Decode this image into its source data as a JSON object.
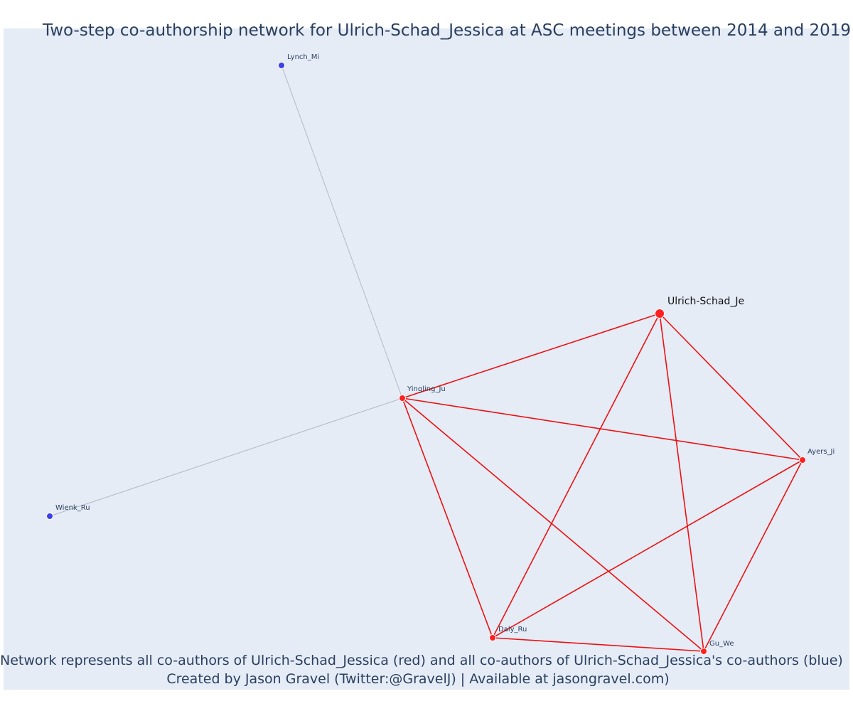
{
  "title": "Two-step co-authorship network for Ulrich-Schad_Jessica at ASC meetings between 2014 and 2019",
  "caption": {
    "line1": "Network represents all co-authors of Ulrich-Schad_Jessica (red) and all co-authors of Ulrich-Schad_Jessica's co-authors (blue)",
    "line2": "Created by Jason Gravel (Twitter:@GravelJ) | Available at jasongravel.com)"
  },
  "colors": {
    "plot_background": "#e5ecf6",
    "coauthor": "#ff2020",
    "second_step": "#3b3fe6",
    "red_edge": "#ee1111",
    "grey_edge": "#b4b8c8"
  },
  "nodes": [
    {
      "id": "ulrich",
      "label": "Ulrich-Schad_Je",
      "group": "focal"
    },
    {
      "id": "yingling",
      "label": "Yingling_Ju",
      "group": "coauthor"
    },
    {
      "id": "ayers",
      "label": "Ayers_Ji",
      "group": "coauthor"
    },
    {
      "id": "daly",
      "label": "Daly_Ru",
      "group": "coauthor"
    },
    {
      "id": "gu",
      "label": "Gu_We",
      "group": "coauthor"
    },
    {
      "id": "lynch",
      "label": "Lynch_Mi",
      "group": "second_step"
    },
    {
      "id": "wienk",
      "label": "Wienk_Ru",
      "group": "second_step"
    }
  ],
  "edges": [
    {
      "source": "ulrich",
      "target": "yingling",
      "type": "red"
    },
    {
      "source": "ulrich",
      "target": "ayers",
      "type": "red"
    },
    {
      "source": "ulrich",
      "target": "daly",
      "type": "red"
    },
    {
      "source": "ulrich",
      "target": "gu",
      "type": "red"
    },
    {
      "source": "yingling",
      "target": "ayers",
      "type": "red"
    },
    {
      "source": "yingling",
      "target": "daly",
      "type": "red"
    },
    {
      "source": "yingling",
      "target": "gu",
      "type": "red"
    },
    {
      "source": "ayers",
      "target": "daly",
      "type": "red"
    },
    {
      "source": "ayers",
      "target": "gu",
      "type": "red"
    },
    {
      "source": "daly",
      "target": "gu",
      "type": "red"
    },
    {
      "source": "yingling",
      "target": "lynch",
      "type": "grey"
    },
    {
      "source": "yingling",
      "target": "wienk",
      "type": "grey"
    }
  ]
}
